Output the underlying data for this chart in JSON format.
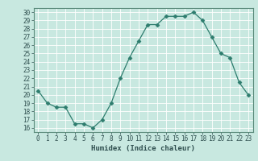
{
  "x": [
    0,
    1,
    2,
    3,
    4,
    5,
    6,
    7,
    8,
    9,
    10,
    11,
    12,
    13,
    14,
    15,
    16,
    17,
    18,
    19,
    20,
    21,
    22,
    23
  ],
  "y": [
    20.5,
    19.0,
    18.5,
    18.5,
    16.5,
    16.5,
    16.0,
    17.0,
    19.0,
    22.0,
    24.5,
    26.5,
    28.5,
    28.5,
    29.5,
    29.5,
    29.5,
    30.0,
    29.0,
    27.0,
    25.0,
    24.5,
    21.5,
    20.0
  ],
  "xlabel": "Humidex (Indice chaleur)",
  "xlim": [
    -0.5,
    23.5
  ],
  "ylim": [
    15.5,
    30.5
  ],
  "yticks": [
    16,
    17,
    18,
    19,
    20,
    21,
    22,
    23,
    24,
    25,
    26,
    27,
    28,
    29,
    30
  ],
  "xticks": [
    0,
    1,
    2,
    3,
    4,
    5,
    6,
    7,
    8,
    9,
    10,
    11,
    12,
    13,
    14,
    15,
    16,
    17,
    18,
    19,
    20,
    21,
    22,
    23
  ],
  "line_color": "#2e7d6e",
  "marker": "D",
  "marker_size": 2.5,
  "bg_color": "#c8e8e0",
  "grid_color": "#ffffff",
  "tick_fontsize": 5.5,
  "xlabel_fontsize": 6.5,
  "line_width": 0.9
}
